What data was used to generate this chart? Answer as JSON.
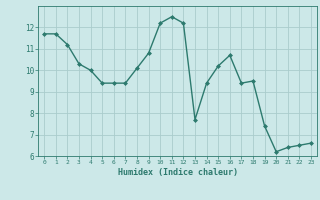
{
  "x": [
    0,
    1,
    2,
    3,
    4,
    5,
    6,
    7,
    8,
    9,
    10,
    11,
    12,
    13,
    14,
    15,
    16,
    17,
    18,
    19,
    20,
    21,
    22,
    23
  ],
  "y": [
    11.7,
    11.7,
    11.2,
    10.3,
    10.0,
    9.4,
    9.4,
    9.4,
    10.1,
    10.8,
    12.2,
    12.5,
    12.2,
    7.7,
    9.4,
    10.2,
    10.7,
    9.4,
    9.5,
    7.4,
    6.2,
    6.4,
    6.5,
    6.6
  ],
  "xlabel": "Humidex (Indice chaleur)",
  "bg_color": "#cce8e8",
  "line_color": "#2d7a6e",
  "grid_color": "#aacccc",
  "tick_color": "#2d7a6e",
  "text_color": "#2d7a6e",
  "ylim": [
    6,
    13
  ],
  "xlim": [
    -0.5,
    23.5
  ],
  "yticks": [
    6,
    7,
    8,
    9,
    10,
    11,
    12
  ],
  "xticks": [
    0,
    1,
    2,
    3,
    4,
    5,
    6,
    7,
    8,
    9,
    10,
    11,
    12,
    13,
    14,
    15,
    16,
    17,
    18,
    19,
    20,
    21,
    22,
    23
  ]
}
